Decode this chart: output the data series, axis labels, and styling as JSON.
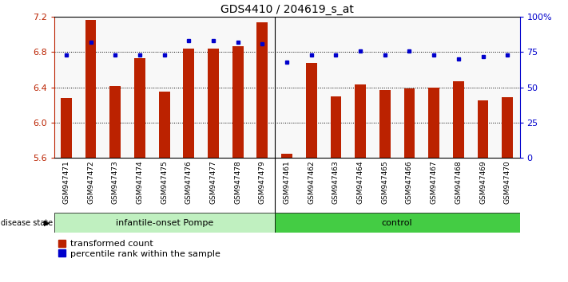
{
  "title": "GDS4410 / 204619_s_at",
  "samples": [
    "GSM947471",
    "GSM947472",
    "GSM947473",
    "GSM947474",
    "GSM947475",
    "GSM947476",
    "GSM947477",
    "GSM947478",
    "GSM947479",
    "GSM947461",
    "GSM947462",
    "GSM947463",
    "GSM947464",
    "GSM947465",
    "GSM947466",
    "GSM947467",
    "GSM947468",
    "GSM947469",
    "GSM947470"
  ],
  "red_values": [
    6.28,
    7.17,
    6.42,
    6.73,
    6.35,
    6.84,
    6.84,
    6.87,
    7.14,
    5.65,
    6.68,
    6.3,
    6.43,
    6.37,
    6.39,
    6.4,
    6.47,
    6.25,
    6.29
  ],
  "blue_values": [
    73,
    82,
    73,
    73,
    73,
    83,
    83,
    82,
    81,
    68,
    73,
    73,
    76,
    73,
    76,
    73,
    70,
    72,
    73
  ],
  "group_labels": [
    "infantile-onset Pompe",
    "control"
  ],
  "group_sizes": [
    9,
    10
  ],
  "ylim_left": [
    5.6,
    7.2
  ],
  "ylim_right": [
    0,
    100
  ],
  "yticks_left": [
    5.6,
    6.0,
    6.4,
    6.8,
    7.2
  ],
  "yticks_right": [
    0,
    25,
    50,
    75,
    100
  ],
  "bar_color": "#BB2200",
  "dot_color": "#0000CC",
  "tick_bg_color": "#D8D8D8",
  "plot_bg_color": "#F8F8F8",
  "group1_color": "#C0F0C0",
  "group2_color": "#44CC44",
  "legend_red_label": "transformed count",
  "legend_blue_label": "percentile rank within the sample"
}
